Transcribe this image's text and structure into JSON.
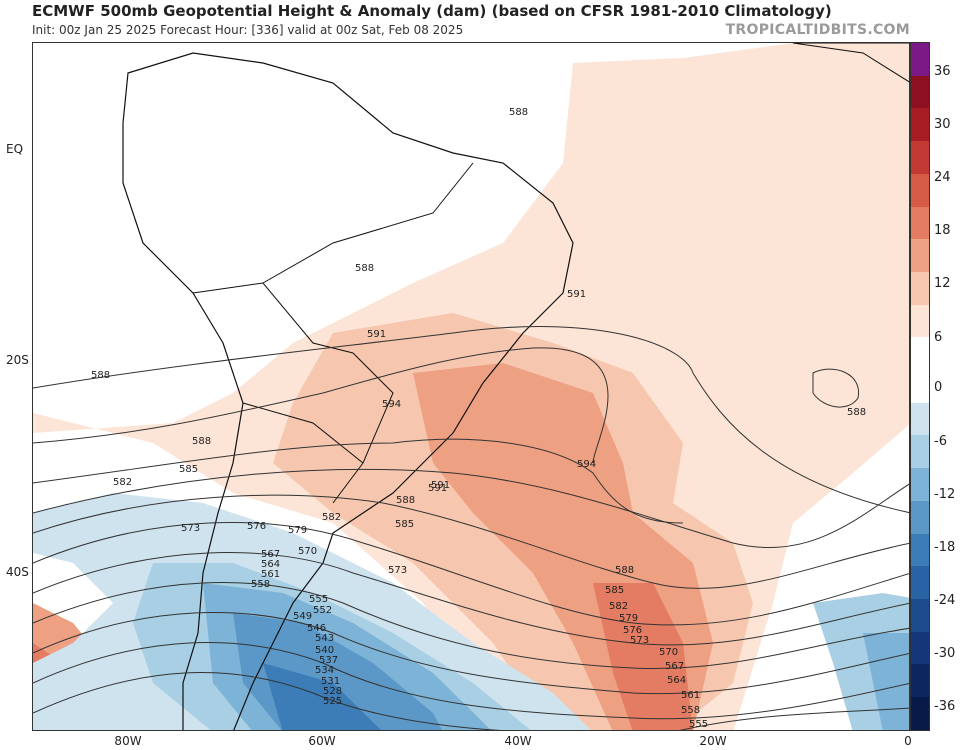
{
  "title": "ECMWF 500mb Geopotential Height & Anomaly (dam) (based on CFSR 1981-2010 Climatology)",
  "subtitle": "Init: 00z Jan 25 2025   Forecast Hour: [336]   valid at 00z Sat, Feb 08 2025",
  "credit": "TROPICALTIDBITS.COM",
  "lat_labels": [
    "EQ",
    "20S",
    "40S"
  ],
  "lon_labels": [
    "80W",
    "60W",
    "40W",
    "20W",
    "0"
  ],
  "colorbar": {
    "labels": [
      "36",
      "30",
      "24",
      "18",
      "12",
      "6",
      "0",
      "-6",
      "-12",
      "-18",
      "-24",
      "-30",
      "-36"
    ],
    "colors": [
      "#7b1a86",
      "#8c1020",
      "#a81d23",
      "#c23a33",
      "#d55b46",
      "#e37c62",
      "#eea083",
      "#f6c7ae",
      "#fce4d6",
      "#ffffff",
      "#ffffff",
      "#cfe3ef",
      "#a8cfe3",
      "#7db3d6",
      "#5b98c8",
      "#3c7db8",
      "#2a63a3",
      "#1c4c8c",
      "#14377a",
      "#0c2660",
      "#071a48"
    ]
  },
  "contour_labels": [
    "588",
    "588",
    "591",
    "591",
    "594",
    "594",
    "588",
    "588",
    "585",
    "582",
    "573",
    "576",
    "579",
    "582",
    "588",
    "585",
    "591",
    "588",
    "585",
    "582",
    "579",
    "576",
    "573",
    "570",
    "567",
    "564",
    "561",
    "558",
    "555",
    "573",
    "570",
    "567",
    "564",
    "561",
    "558",
    "555",
    "552",
    "549",
    "546",
    "543",
    "540",
    "537",
    "534",
    "531",
    "528",
    "525",
    "591",
    "588"
  ]
}
